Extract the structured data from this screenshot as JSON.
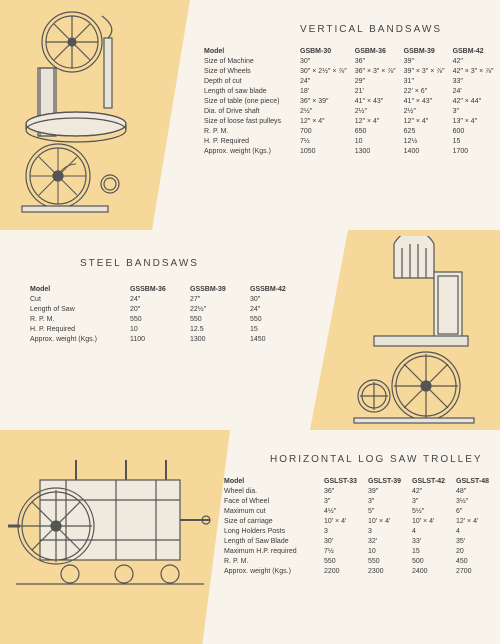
{
  "sections": [
    {
      "title": "VERTICAL  BANDSAWS",
      "headers": [
        "Model",
        "GSBM-30",
        "GSBM-36",
        "GSBM-39",
        "GSBM-42"
      ],
      "rows": [
        [
          "Size of Machine",
          "30″",
          "36″",
          "39″",
          "42″"
        ],
        [
          "Size of Wheels",
          "30″ × 2½″ × ⅞″",
          "36″ × 3″ × ⅞″",
          "39″ × 3″ × ⅞″",
          "42″ × 3″ × ⅞″"
        ],
        [
          "Depth of cut",
          "24″",
          "29″",
          "31″",
          "33″"
        ],
        [
          "Length of saw blade",
          "18′",
          "21′",
          "22′ × 6″",
          "24′"
        ],
        [
          "Size of table (one piece)",
          "36″ × 39″",
          "41″ × 43″",
          "41″ × 43″",
          "42″ × 44″"
        ],
        [
          "Dia. of Drive shaft",
          "2½″",
          "2½″",
          "2½″",
          "3″"
        ],
        [
          "Size of loose fast pulleys",
          "12″ × 4″",
          "12″ × 4″",
          "12″ × 4″",
          "13″ × 4″"
        ],
        [
          "R. P. M.",
          "700",
          "650",
          "625",
          "600"
        ],
        [
          "H. P. Required",
          "7½",
          "10",
          "12½",
          "15"
        ],
        [
          "Approx. weight (Kgs.)",
          "1050",
          "1300",
          "1400",
          "1700"
        ]
      ]
    },
    {
      "title": "STEEL  BANDSAWS",
      "headers": [
        "Model",
        "GSSBM-36",
        "GSSBM-39",
        "GSSBM-42"
      ],
      "rows": [
        [
          "Cut",
          "24″",
          "27″",
          "30″"
        ],
        [
          "Length of Saw",
          "20″",
          "22½″",
          "24″"
        ],
        [
          "R. P. M.",
          "550",
          "550",
          "550"
        ],
        [
          "H. P. Required",
          "10",
          "12.5",
          "15"
        ],
        [
          "Approx. weight (Kgs.)",
          "1100",
          "1300",
          "1450"
        ]
      ]
    },
    {
      "title": "HORIZONTAL  LOG  SAW  TROLLEY",
      "headers": [
        "Model",
        "GSLST-33",
        "GSLST-39",
        "GSLST-42",
        "GSLST-48"
      ],
      "rows": [
        [
          "Wheel dia.",
          "36″",
          "39″",
          "42″",
          "48″"
        ],
        [
          "Face of Wheel",
          "3″",
          "3″",
          "3″",
          "3½″"
        ],
        [
          "Maximum cut",
          "4½″",
          "5″",
          "5½″",
          "6″"
        ],
        [
          "Size of carriage",
          "10′ × 4′",
          "10′ × 4′",
          "10′ × 4′",
          "12′ × 4′"
        ],
        [
          "Long Holders Posts",
          "3",
          "3",
          "4",
          "4"
        ],
        [
          "Length of Saw Blade",
          "30′",
          "32′",
          "33′",
          "35′"
        ],
        [
          "Maximum H.P. required",
          "7½",
          "10",
          "15",
          "20"
        ],
        [
          "R. P. M.",
          "550",
          "550",
          "500",
          "450"
        ],
        [
          "Approx. weight (Kgs.)",
          "2200",
          "2300",
          "2400",
          "2700"
        ]
      ]
    }
  ],
  "style": {
    "peach": "#f5d89a",
    "paper": "#f8f4ec",
    "ink": "#3a3a3a"
  }
}
